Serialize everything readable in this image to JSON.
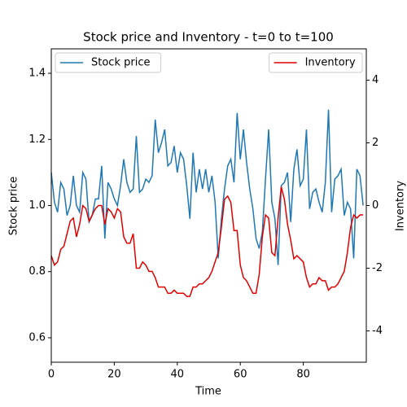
{
  "chart_data": {
    "type": "line",
    "title": "Stock price and Inventory - t=0 to t=100",
    "x_label": "Time",
    "y_label": "Stock price",
    "y2_label": "Inventory",
    "x": [
      0,
      1,
      2,
      3,
      4,
      5,
      6,
      7,
      8,
      9,
      10,
      11,
      12,
      13,
      14,
      15,
      16,
      17,
      18,
      19,
      20,
      21,
      22,
      23,
      24,
      25,
      26,
      27,
      28,
      29,
      30,
      31,
      32,
      33,
      34,
      35,
      36,
      37,
      38,
      39,
      40,
      41,
      42,
      43,
      44,
      45,
      46,
      47,
      48,
      49,
      50,
      51,
      52,
      53,
      54,
      55,
      56,
      57,
      58,
      59,
      60,
      61,
      62,
      63,
      64,
      65,
      66,
      67,
      68,
      69,
      70,
      71,
      72,
      73,
      74,
      75,
      76,
      77,
      78,
      79,
      80,
      81,
      82,
      83,
      84,
      85,
      86,
      87,
      88,
      89,
      90,
      91,
      92,
      93,
      94,
      95,
      96,
      97,
      98,
      99
    ],
    "series": [
      {
        "name": "Stock price",
        "color": "#1f77b4",
        "axis": "y",
        "legend": "upper left",
        "values": [
          1.1,
          1.01,
          0.98,
          1.07,
          1.05,
          0.97,
          1.0,
          1.09,
          1.0,
          0.98,
          1.1,
          1.08,
          0.95,
          0.97,
          1.02,
          1.02,
          1.12,
          0.9,
          1.07,
          1.05,
          1.02,
          1.0,
          1.06,
          1.14,
          1.07,
          1.04,
          1.05,
          1.21,
          1.04,
          1.05,
          1.08,
          1.07,
          1.09,
          1.26,
          1.16,
          1.19,
          1.23,
          1.12,
          1.13,
          1.18,
          1.1,
          1.16,
          1.14,
          1.06,
          0.96,
          1.16,
          1.04,
          1.11,
          1.05,
          1.11,
          1.04,
          1.09,
          1.01,
          0.84,
          0.96,
          1.05,
          1.12,
          1.14,
          1.07,
          1.28,
          1.14,
          1.23,
          1.13,
          1.05,
          0.99,
          0.9,
          0.87,
          0.92,
          1.08,
          1.23,
          1.01,
          0.96,
          0.82,
          1.06,
          1.07,
          1.1,
          0.95,
          1.11,
          1.17,
          1.06,
          1.08,
          1.23,
          0.99,
          1.04,
          1.05,
          1.01,
          0.98,
          1.07,
          1.29,
          0.98,
          1.08,
          1.09,
          1.11,
          0.97,
          1.01,
          0.99,
          0.84,
          1.11,
          1.09,
          1.0
        ]
      },
      {
        "name": "Inventory",
        "color": "#e00000",
        "axis": "y2",
        "legend": "upper right",
        "values": [
          -1.6,
          -1.9,
          -1.8,
          -1.4,
          -1.3,
          -0.9,
          -0.5,
          -0.4,
          -1.0,
          -0.6,
          0.0,
          -0.1,
          -0.5,
          -0.3,
          -0.1,
          0.0,
          0.0,
          -0.6,
          -0.1,
          -0.2,
          -0.4,
          -0.1,
          -0.2,
          -1.0,
          -1.2,
          -1.2,
          -0.9,
          -2.0,
          -2.0,
          -1.8,
          -1.9,
          -2.1,
          -2.1,
          -2.3,
          -2.6,
          -2.6,
          -2.6,
          -2.8,
          -2.8,
          -2.7,
          -2.8,
          -2.8,
          -2.8,
          -2.9,
          -2.9,
          -2.6,
          -2.6,
          -2.5,
          -2.5,
          -2.4,
          -2.3,
          -2.1,
          -1.8,
          -1.5,
          -0.7,
          0.2,
          0.3,
          0.1,
          -0.8,
          -0.8,
          -1.9,
          -2.3,
          -2.4,
          -2.6,
          -2.8,
          -2.8,
          -2.2,
          -1.0,
          -0.3,
          -0.4,
          -1.5,
          -1.6,
          -0.4,
          0.6,
          0.2,
          -0.6,
          -1.1,
          -1.7,
          -1.6,
          -1.7,
          -1.8,
          -2.3,
          -2.6,
          -2.5,
          -2.5,
          -2.3,
          -2.4,
          -2.4,
          -2.7,
          -2.6,
          -2.6,
          -2.5,
          -2.3,
          -2.1,
          -1.5,
          -0.7,
          -0.3,
          -0.4,
          -0.3,
          -0.3
        ]
      }
    ],
    "xlim": [
      0,
      100
    ],
    "xticks": [
      0,
      20,
      40,
      60,
      80
    ],
    "ylim": [
      0.526,
      1.474
    ],
    "yticks": [
      0.6,
      0.8,
      {
        "value": 1,
        "label": "1.0"
      },
      1.2,
      1.4
    ],
    "y2lim": [
      -5,
      5
    ],
    "y2ticks": [
      -4,
      -2,
      0,
      2,
      4
    ],
    "grid": false
  }
}
